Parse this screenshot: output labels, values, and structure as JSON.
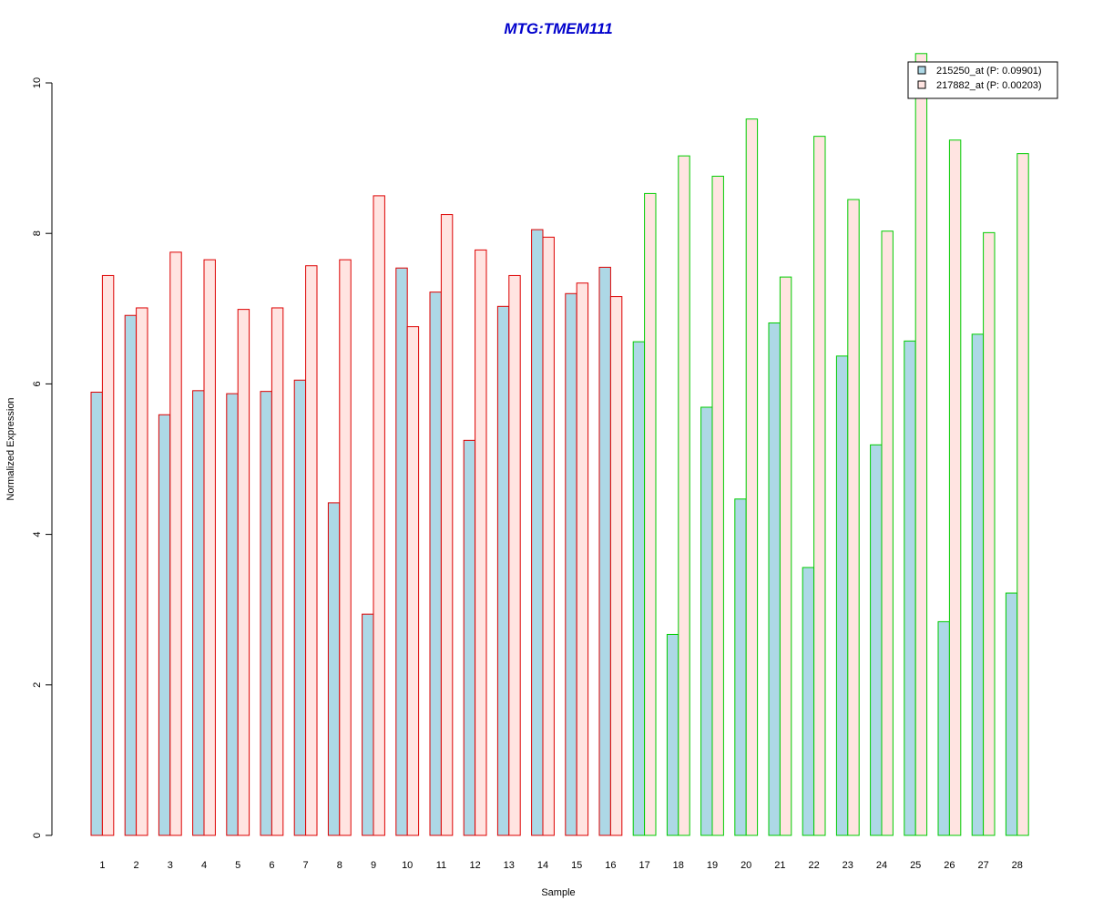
{
  "chart_data": {
    "type": "bar",
    "title": "MTG:TMEM111",
    "xlabel": "Sample",
    "ylabel": "Normalized Expression",
    "ylim": [
      0,
      10
    ],
    "yticks": [
      "0",
      "2",
      "4",
      "6",
      "8",
      "10"
    ],
    "grid": false,
    "legend_position": "top-right",
    "categories": [
      "1",
      "2",
      "3",
      "4",
      "5",
      "6",
      "7",
      "8",
      "9",
      "10",
      "11",
      "12",
      "13",
      "14",
      "15",
      "16",
      "17",
      "18",
      "19",
      "20",
      "21",
      "22",
      "23",
      "24",
      "25",
      "26",
      "27",
      "28"
    ],
    "group_border_colors": [
      "#dd0000",
      "#dd0000",
      "#dd0000",
      "#dd0000",
      "#dd0000",
      "#dd0000",
      "#dd0000",
      "#dd0000",
      "#dd0000",
      "#dd0000",
      "#dd0000",
      "#dd0000",
      "#dd0000",
      "#dd0000",
      "#dd0000",
      "#dd0000",
      "#00cc00",
      "#00cc00",
      "#00cc00",
      "#00cc00",
      "#00cc00",
      "#00cc00",
      "#00cc00",
      "#00cc00",
      "#00cc00",
      "#00cc00",
      "#00cc00",
      "#00cc00"
    ],
    "series": [
      {
        "name": "215250_at (P: 0.09901)",
        "fill": "#add8e6",
        "values": [
          5.89,
          6.91,
          5.59,
          5.91,
          5.87,
          5.9,
          6.05,
          4.42,
          2.94,
          7.54,
          7.22,
          5.25,
          7.03,
          8.05,
          7.2,
          7.55,
          6.56,
          2.67,
          5.69,
          4.47,
          6.81,
          3.56,
          6.37,
          5.19,
          6.57,
          2.84,
          6.66,
          3.22
        ]
      },
      {
        "name": "217882_at (P: 0.00203)",
        "fill": "#ffe4e1",
        "values": [
          7.44,
          7.01,
          7.75,
          7.65,
          6.99,
          7.01,
          7.57,
          7.65,
          8.5,
          6.76,
          8.25,
          7.78,
          7.44,
          7.95,
          7.34,
          7.16,
          8.53,
          9.03,
          8.76,
          9.52,
          7.42,
          9.29,
          8.45,
          8.03,
          10.39,
          9.24,
          8.01,
          9.06
        ]
      }
    ]
  },
  "colors": {
    "title": "#0000cc",
    "group1_border": "#dd0000",
    "group2_border": "#00cc00"
  }
}
